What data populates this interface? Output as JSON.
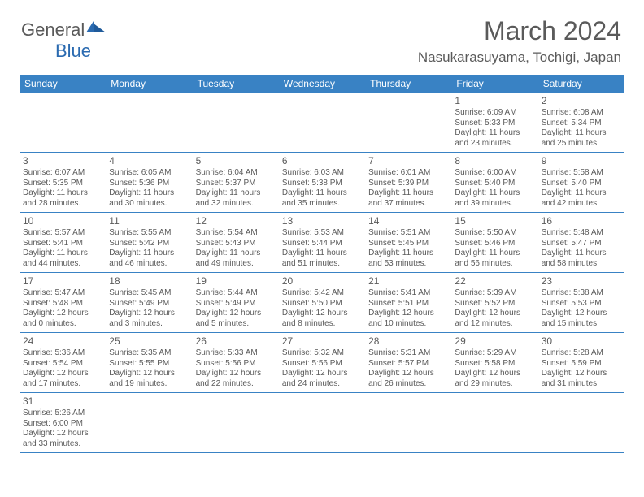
{
  "brand": {
    "part1": "General",
    "part2": "Blue"
  },
  "title": {
    "month": "March 2024",
    "location": "Nasukarasuyama, Tochigi, Japan"
  },
  "colors": {
    "header_bg": "#3982c4",
    "header_text": "#ffffff",
    "border": "#3982c4",
    "text": "#5a5a5a"
  },
  "daynames": [
    "Sunday",
    "Monday",
    "Tuesday",
    "Wednesday",
    "Thursday",
    "Friday",
    "Saturday"
  ],
  "grid": {
    "first_weekday_index": 5,
    "days_in_month": 31
  },
  "days": {
    "1": {
      "sunrise": "Sunrise: 6:09 AM",
      "sunset": "Sunset: 5:33 PM",
      "daylight": "Daylight: 11 hours and 23 minutes."
    },
    "2": {
      "sunrise": "Sunrise: 6:08 AM",
      "sunset": "Sunset: 5:34 PM",
      "daylight": "Daylight: 11 hours and 25 minutes."
    },
    "3": {
      "sunrise": "Sunrise: 6:07 AM",
      "sunset": "Sunset: 5:35 PM",
      "daylight": "Daylight: 11 hours and 28 minutes."
    },
    "4": {
      "sunrise": "Sunrise: 6:05 AM",
      "sunset": "Sunset: 5:36 PM",
      "daylight": "Daylight: 11 hours and 30 minutes."
    },
    "5": {
      "sunrise": "Sunrise: 6:04 AM",
      "sunset": "Sunset: 5:37 PM",
      "daylight": "Daylight: 11 hours and 32 minutes."
    },
    "6": {
      "sunrise": "Sunrise: 6:03 AM",
      "sunset": "Sunset: 5:38 PM",
      "daylight": "Daylight: 11 hours and 35 minutes."
    },
    "7": {
      "sunrise": "Sunrise: 6:01 AM",
      "sunset": "Sunset: 5:39 PM",
      "daylight": "Daylight: 11 hours and 37 minutes."
    },
    "8": {
      "sunrise": "Sunrise: 6:00 AM",
      "sunset": "Sunset: 5:40 PM",
      "daylight": "Daylight: 11 hours and 39 minutes."
    },
    "9": {
      "sunrise": "Sunrise: 5:58 AM",
      "sunset": "Sunset: 5:40 PM",
      "daylight": "Daylight: 11 hours and 42 minutes."
    },
    "10": {
      "sunrise": "Sunrise: 5:57 AM",
      "sunset": "Sunset: 5:41 PM",
      "daylight": "Daylight: 11 hours and 44 minutes."
    },
    "11": {
      "sunrise": "Sunrise: 5:55 AM",
      "sunset": "Sunset: 5:42 PM",
      "daylight": "Daylight: 11 hours and 46 minutes."
    },
    "12": {
      "sunrise": "Sunrise: 5:54 AM",
      "sunset": "Sunset: 5:43 PM",
      "daylight": "Daylight: 11 hours and 49 minutes."
    },
    "13": {
      "sunrise": "Sunrise: 5:53 AM",
      "sunset": "Sunset: 5:44 PM",
      "daylight": "Daylight: 11 hours and 51 minutes."
    },
    "14": {
      "sunrise": "Sunrise: 5:51 AM",
      "sunset": "Sunset: 5:45 PM",
      "daylight": "Daylight: 11 hours and 53 minutes."
    },
    "15": {
      "sunrise": "Sunrise: 5:50 AM",
      "sunset": "Sunset: 5:46 PM",
      "daylight": "Daylight: 11 hours and 56 minutes."
    },
    "16": {
      "sunrise": "Sunrise: 5:48 AM",
      "sunset": "Sunset: 5:47 PM",
      "daylight": "Daylight: 11 hours and 58 minutes."
    },
    "17": {
      "sunrise": "Sunrise: 5:47 AM",
      "sunset": "Sunset: 5:48 PM",
      "daylight": "Daylight: 12 hours and 0 minutes."
    },
    "18": {
      "sunrise": "Sunrise: 5:45 AM",
      "sunset": "Sunset: 5:49 PM",
      "daylight": "Daylight: 12 hours and 3 minutes."
    },
    "19": {
      "sunrise": "Sunrise: 5:44 AM",
      "sunset": "Sunset: 5:49 PM",
      "daylight": "Daylight: 12 hours and 5 minutes."
    },
    "20": {
      "sunrise": "Sunrise: 5:42 AM",
      "sunset": "Sunset: 5:50 PM",
      "daylight": "Daylight: 12 hours and 8 minutes."
    },
    "21": {
      "sunrise": "Sunrise: 5:41 AM",
      "sunset": "Sunset: 5:51 PM",
      "daylight": "Daylight: 12 hours and 10 minutes."
    },
    "22": {
      "sunrise": "Sunrise: 5:39 AM",
      "sunset": "Sunset: 5:52 PM",
      "daylight": "Daylight: 12 hours and 12 minutes."
    },
    "23": {
      "sunrise": "Sunrise: 5:38 AM",
      "sunset": "Sunset: 5:53 PM",
      "daylight": "Daylight: 12 hours and 15 minutes."
    },
    "24": {
      "sunrise": "Sunrise: 5:36 AM",
      "sunset": "Sunset: 5:54 PM",
      "daylight": "Daylight: 12 hours and 17 minutes."
    },
    "25": {
      "sunrise": "Sunrise: 5:35 AM",
      "sunset": "Sunset: 5:55 PM",
      "daylight": "Daylight: 12 hours and 19 minutes."
    },
    "26": {
      "sunrise": "Sunrise: 5:33 AM",
      "sunset": "Sunset: 5:56 PM",
      "daylight": "Daylight: 12 hours and 22 minutes."
    },
    "27": {
      "sunrise": "Sunrise: 5:32 AM",
      "sunset": "Sunset: 5:56 PM",
      "daylight": "Daylight: 12 hours and 24 minutes."
    },
    "28": {
      "sunrise": "Sunrise: 5:31 AM",
      "sunset": "Sunset: 5:57 PM",
      "daylight": "Daylight: 12 hours and 26 minutes."
    },
    "29": {
      "sunrise": "Sunrise: 5:29 AM",
      "sunset": "Sunset: 5:58 PM",
      "daylight": "Daylight: 12 hours and 29 minutes."
    },
    "30": {
      "sunrise": "Sunrise: 5:28 AM",
      "sunset": "Sunset: 5:59 PM",
      "daylight": "Daylight: 12 hours and 31 minutes."
    },
    "31": {
      "sunrise": "Sunrise: 5:26 AM",
      "sunset": "Sunset: 6:00 PM",
      "daylight": "Daylight: 12 hours and 33 minutes."
    }
  }
}
